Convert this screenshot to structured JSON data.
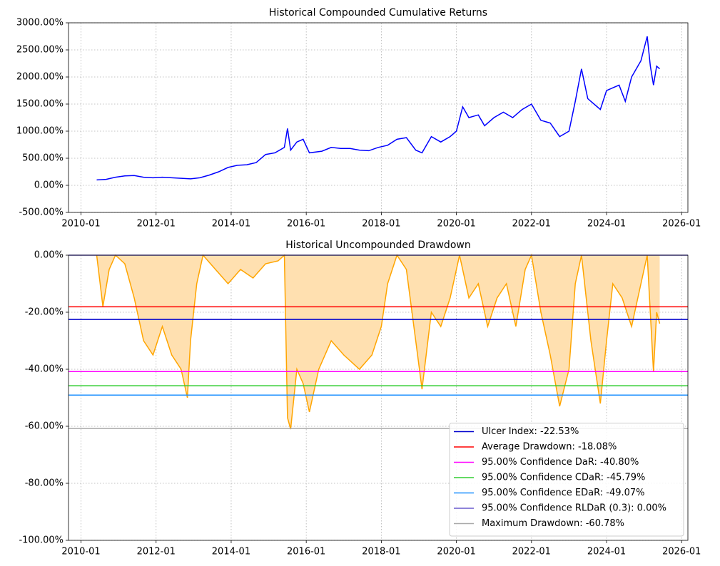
{
  "chart_data": [
    {
      "type": "line",
      "title": "Historical Compounded Cumulative Returns",
      "color": "#0000ff",
      "grid": true,
      "xlim": [
        "2009-09",
        "2026-03"
      ],
      "xticks": [
        "2010-01",
        "2012-01",
        "2014-01",
        "2016-01",
        "2018-01",
        "2020-01",
        "2022-01",
        "2024-01",
        "2026-01"
      ],
      "ylim": [
        -500,
        3000
      ],
      "yticks": [
        {
          "value": -500,
          "label": "-500.00%"
        },
        {
          "value": 0,
          "label": "0.00%"
        },
        {
          "value": 500,
          "label": "500.00%"
        },
        {
          "value": 1000,
          "label": "1000.00%"
        },
        {
          "value": 1500,
          "label": "1500.00%"
        },
        {
          "value": 2000,
          "label": "2000.00%"
        },
        {
          "value": 2500,
          "label": "2500.00%"
        },
        {
          "value": 3000,
          "label": "3000.00%"
        }
      ],
      "x": [
        "2010-06",
        "2010-09",
        "2010-12",
        "2011-03",
        "2011-06",
        "2011-09",
        "2011-12",
        "2012-03",
        "2012-06",
        "2012-09",
        "2012-12",
        "2013-03",
        "2013-06",
        "2013-09",
        "2013-12",
        "2014-03",
        "2014-06",
        "2014-09",
        "2014-12",
        "2015-03",
        "2015-06",
        "2015-07",
        "2015-08",
        "2015-10",
        "2015-12",
        "2016-02",
        "2016-06",
        "2016-09",
        "2016-12",
        "2017-03",
        "2017-06",
        "2017-09",
        "2017-12",
        "2018-03",
        "2018-06",
        "2018-09",
        "2018-12",
        "2019-02",
        "2019-05",
        "2019-08",
        "2019-11",
        "2020-01",
        "2020-03",
        "2020-05",
        "2020-08",
        "2020-10",
        "2021-01",
        "2021-04",
        "2021-07",
        "2021-10",
        "2022-01",
        "2022-04",
        "2022-07",
        "2022-10",
        "2023-01",
        "2023-03",
        "2023-05",
        "2023-07",
        "2023-09",
        "2023-11",
        "2024-01",
        "2024-03",
        "2024-05",
        "2024-07",
        "2024-09",
        "2024-12",
        "2025-02",
        "2025-03",
        "2025-04",
        "2025-05",
        "2025-06"
      ],
      "values": [
        100,
        110,
        150,
        175,
        180,
        150,
        140,
        150,
        140,
        130,
        120,
        140,
        190,
        250,
        330,
        370,
        380,
        420,
        570,
        600,
        700,
        1050,
        650,
        800,
        850,
        600,
        630,
        700,
        680,
        680,
        650,
        640,
        700,
        740,
        850,
        880,
        650,
        600,
        900,
        800,
        900,
        1000,
        1450,
        1250,
        1300,
        1100,
        1250,
        1350,
        1250,
        1400,
        1500,
        1200,
        1150,
        900,
        1000,
        1550,
        2150,
        1600,
        1500,
        1400,
        1750,
        1800,
        1850,
        1550,
        2000,
        2300,
        2750,
        2200,
        1850,
        2200,
        2150
      ]
    },
    {
      "type": "area",
      "title": "Historical Uncompounded Drawdown",
      "color": "#ffa500",
      "fill_color": "#ffe0b0",
      "grid": true,
      "legend": "lower right",
      "xlim": [
        "2009-09",
        "2026-03"
      ],
      "xticks": [
        "2010-01",
        "2012-01",
        "2014-01",
        "2016-01",
        "2018-01",
        "2020-01",
        "2022-01",
        "2024-01",
        "2026-01"
      ],
      "ylim": [
        -100,
        0
      ],
      "yticks": [
        {
          "value": -100,
          "label": "-100.00%"
        },
        {
          "value": -80,
          "label": "-80.00%"
        },
        {
          "value": -60,
          "label": "-60.00%"
        },
        {
          "value": -40,
          "label": "-40.00%"
        },
        {
          "value": -20,
          "label": "-20.00%"
        },
        {
          "value": 0,
          "label": "0.00%"
        }
      ],
      "x": [
        "2010-06",
        "2010-08",
        "2010-10",
        "2010-12",
        "2011-03",
        "2011-06",
        "2011-09",
        "2011-12",
        "2012-03",
        "2012-06",
        "2012-09",
        "2012-11",
        "2012-12",
        "2013-02",
        "2013-04",
        "2013-08",
        "2013-12",
        "2014-04",
        "2014-08",
        "2014-12",
        "2015-04",
        "2015-06",
        "2015-07",
        "2015-08",
        "2015-10",
        "2015-12",
        "2016-02",
        "2016-05",
        "2016-09",
        "2017-01",
        "2017-06",
        "2017-10",
        "2018-01",
        "2018-03",
        "2018-06",
        "2018-09",
        "2018-12",
        "2019-02",
        "2019-05",
        "2019-08",
        "2019-11",
        "2020-01",
        "2020-02",
        "2020-05",
        "2020-08",
        "2020-11",
        "2021-02",
        "2021-05",
        "2021-08",
        "2021-11",
        "2022-01",
        "2022-04",
        "2022-07",
        "2022-10",
        "2023-01",
        "2023-03",
        "2023-05",
        "2023-08",
        "2023-11",
        "2024-01",
        "2024-03",
        "2024-06",
        "2024-09",
        "2024-12",
        "2025-02",
        "2025-04",
        "2025-05",
        "2025-06"
      ],
      "values": [
        0,
        -18,
        -5,
        0,
        -3,
        -15,
        -30,
        -35,
        -25,
        -35,
        -40,
        -50,
        -30,
        -10,
        0,
        -5,
        -10,
        -5,
        -8,
        -3,
        -2,
        0,
        -57,
        -61,
        -40,
        -45,
        -55,
        -40,
        -30,
        -35,
        -40,
        -35,
        -25,
        -10,
        0,
        -5,
        -30,
        -47,
        -20,
        -25,
        -15,
        -5,
        0,
        -15,
        -10,
        -25,
        -15,
        -10,
        -25,
        -5,
        0,
        -20,
        -35,
        -53,
        -40,
        -10,
        0,
        -30,
        -52,
        -30,
        -10,
        -15,
        -25,
        -10,
        0,
        -41,
        -20,
        -24
      ],
      "hlines": [
        {
          "name": "Ulcer Index: -22.53%",
          "value": -22.53,
          "color": "#0000cd"
        },
        {
          "name": "Average Drawdown: -18.08%",
          "value": -18.08,
          "color": "#ff0000"
        },
        {
          "name": "95.00% Confidence DaR: -40.80%",
          "value": -40.8,
          "color": "#ff00ff"
        },
        {
          "name": "95.00% Confidence CDaR: -45.79%",
          "value": -45.79,
          "color": "#32cd32"
        },
        {
          "name": "95.00% Confidence EDaR: -49.07%",
          "value": -49.07,
          "color": "#1e90ff"
        },
        {
          "name": "95.00% Confidence RLDaR (0.3): 0.00%",
          "value": 0,
          "color": "#6a5acd"
        },
        {
          "name": "Maximum Drawdown: -60.78%",
          "value": -60.78,
          "color": "#a9a9a9"
        }
      ]
    }
  ]
}
